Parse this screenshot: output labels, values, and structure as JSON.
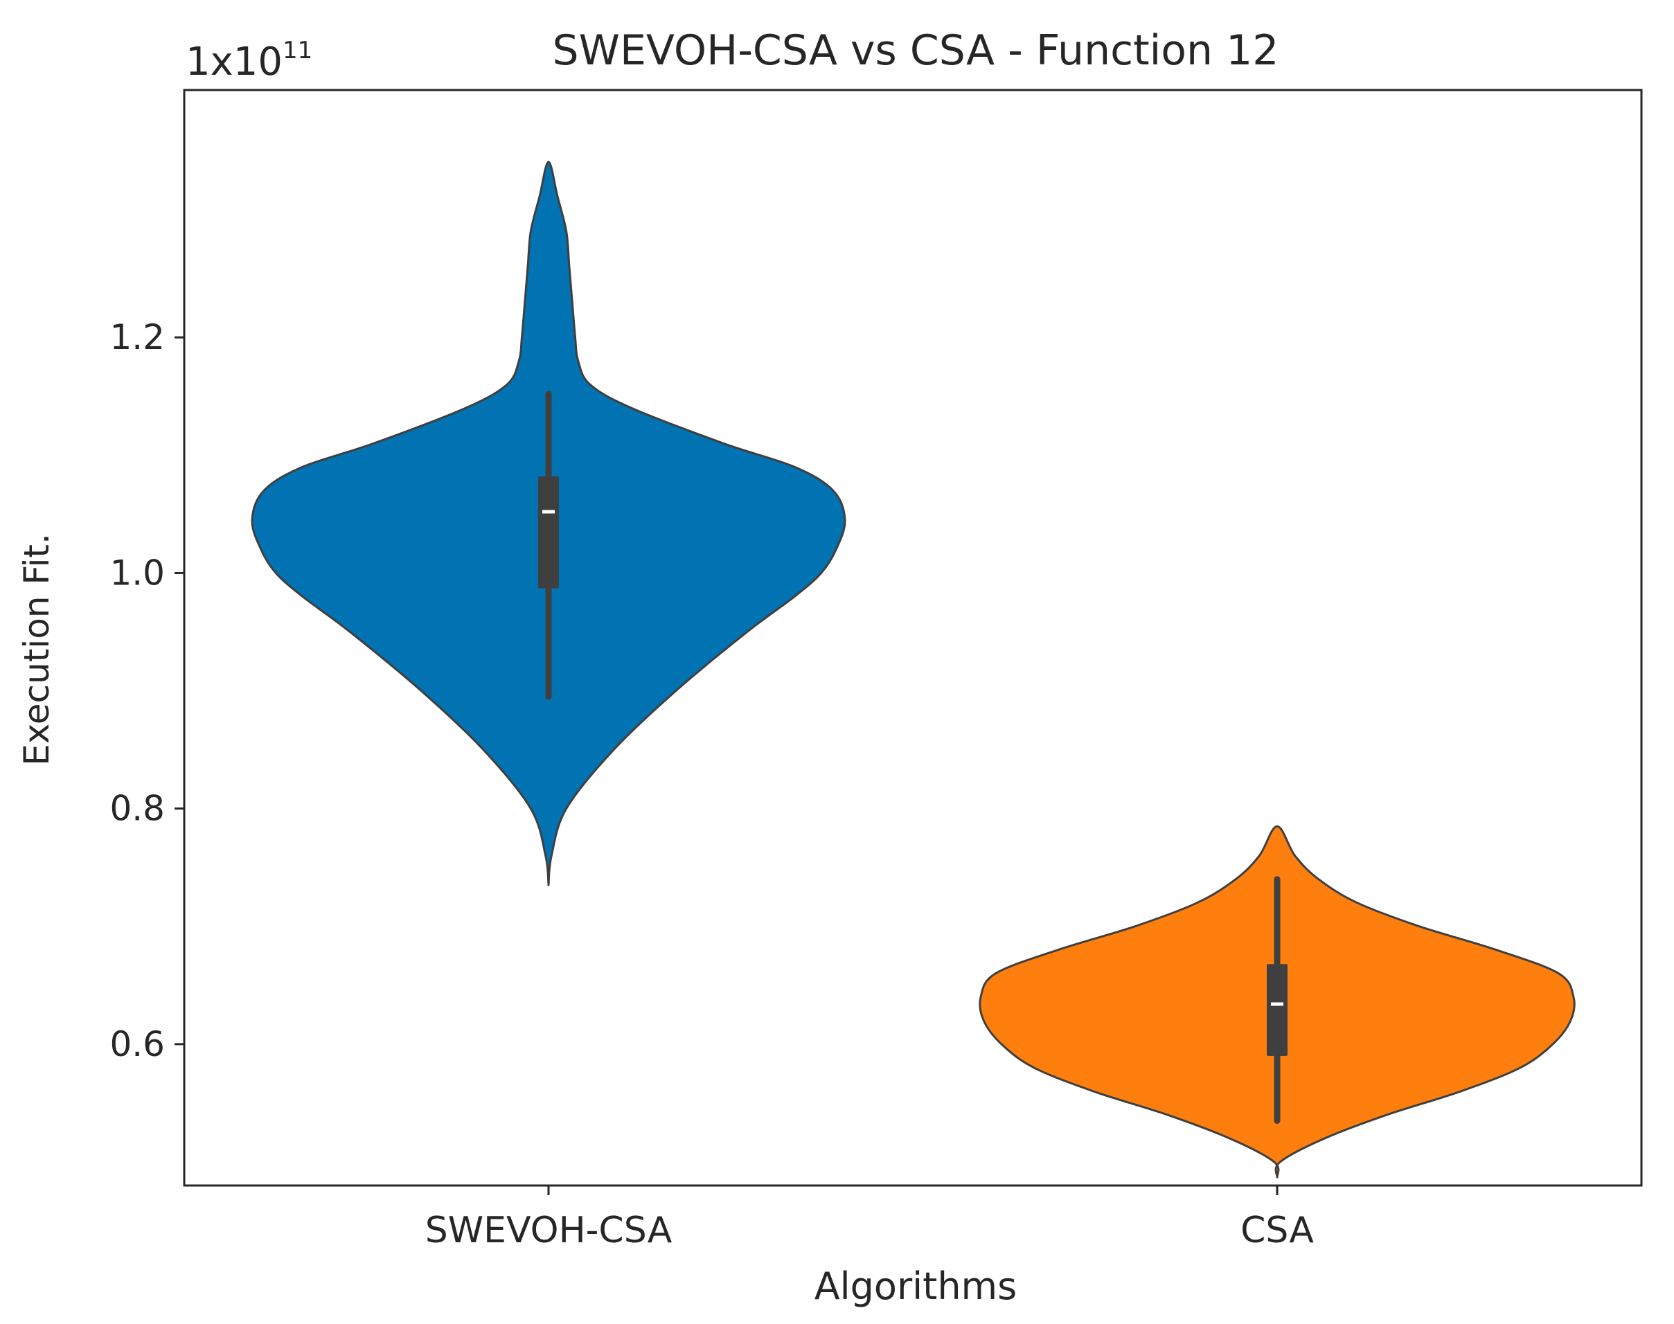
{
  "chart_data": {
    "type": "violin",
    "title": "SWEVOH-CSA vs CSA - Function 12",
    "xlabel": "Algorithms",
    "ylabel": "Execution Fit.",
    "y_scale_label": {
      "base": "1x10",
      "exponent": "11"
    },
    "ylim": [
      0.48,
      1.41
    ],
    "yticks": [
      0.6,
      0.8,
      1.0,
      1.2
    ],
    "ytick_labels": [
      "0.6",
      "0.8",
      "1.0",
      "1.2"
    ],
    "categories": [
      "SWEVOH-CSA",
      "CSA"
    ],
    "grid": false,
    "series": [
      {
        "name": "SWEVOH-CSA",
        "color": "#0173b2",
        "min": 0.735,
        "max": 1.349,
        "whisker_low": 0.895,
        "whisker_high": 1.152,
        "q1": 0.987,
        "median": 1.052,
        "q3": 1.082,
        "density": [
          [
            0.735,
            0.0
          ],
          [
            0.76,
            0.01
          ],
          [
            0.8,
            0.06
          ],
          [
            0.85,
            0.22
          ],
          [
            0.9,
            0.43
          ],
          [
            0.95,
            0.67
          ],
          [
            0.98,
            0.83
          ],
          [
            1.0,
            0.92
          ],
          [
            1.02,
            0.97
          ],
          [
            1.045,
            1.0
          ],
          [
            1.07,
            0.96
          ],
          [
            1.09,
            0.83
          ],
          [
            1.11,
            0.59
          ],
          [
            1.14,
            0.28
          ],
          [
            1.16,
            0.14
          ],
          [
            1.18,
            0.1
          ],
          [
            1.2,
            0.09
          ],
          [
            1.23,
            0.08
          ],
          [
            1.26,
            0.07
          ],
          [
            1.29,
            0.06
          ],
          [
            1.32,
            0.03
          ],
          [
            1.349,
            0.0
          ]
        ]
      },
      {
        "name": "CSA",
        "color": "#ff7f0e",
        "min": 0.487,
        "max": 0.785,
        "whisker_low": 0.535,
        "whisker_high": 0.74,
        "q1": 0.59,
        "median": 0.634,
        "q3": 0.668,
        "density": [
          [
            0.487,
            0.0
          ],
          [
            0.5,
            0.01
          ],
          [
            0.52,
            0.16
          ],
          [
            0.54,
            0.37
          ],
          [
            0.56,
            0.62
          ],
          [
            0.58,
            0.82
          ],
          [
            0.6,
            0.93
          ],
          [
            0.62,
            0.99
          ],
          [
            0.64,
            1.0
          ],
          [
            0.66,
            0.95
          ],
          [
            0.68,
            0.74
          ],
          [
            0.7,
            0.48
          ],
          [
            0.72,
            0.27
          ],
          [
            0.74,
            0.14
          ],
          [
            0.76,
            0.06
          ],
          [
            0.785,
            0.0
          ]
        ]
      }
    ]
  }
}
